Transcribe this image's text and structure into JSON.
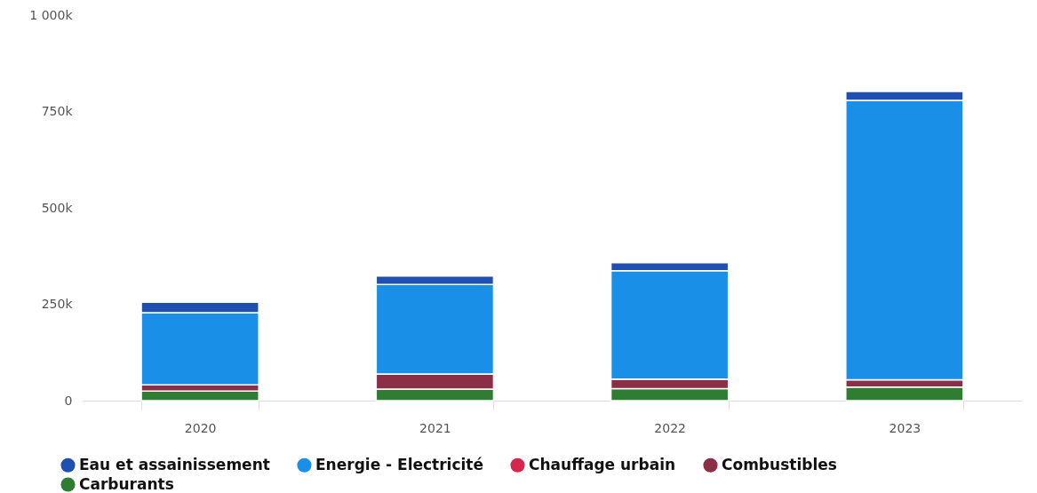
{
  "chart_data": {
    "type": "bar",
    "stacked": true,
    "categories": [
      "2020",
      "2021",
      "2022",
      "2023"
    ],
    "series": [
      {
        "name": "Carburants",
        "color": "#2e7d32",
        "values": [
          25000,
          30000,
          31000,
          35000
        ]
      },
      {
        "name": "Combustibles",
        "color": "#8b2e47",
        "values": [
          16000,
          39000,
          25000,
          19000
        ]
      },
      {
        "name": "Chauffage urbain",
        "color": "#d6264b",
        "values": [
          0,
          0,
          0,
          0
        ]
      },
      {
        "name": "Energie - Electricité",
        "color": "#1a8fe8",
        "values": [
          187000,
          232000,
          281000,
          725000
        ]
      },
      {
        "name": "Eau et assainissement",
        "color": "#1f4fb0",
        "values": [
          27000,
          22000,
          21000,
          23000
        ]
      }
    ],
    "ylim": [
      0,
      1000000
    ],
    "yticks": [
      0,
      {
        "value": 250000,
        "label": "250k"
      },
      {
        "value": 500000,
        "label": "500k"
      },
      {
        "value": 750000,
        "label": "750k"
      },
      {
        "value": 1000000,
        "label": "1 000k"
      }
    ],
    "grid": false,
    "legend": "bottom"
  }
}
